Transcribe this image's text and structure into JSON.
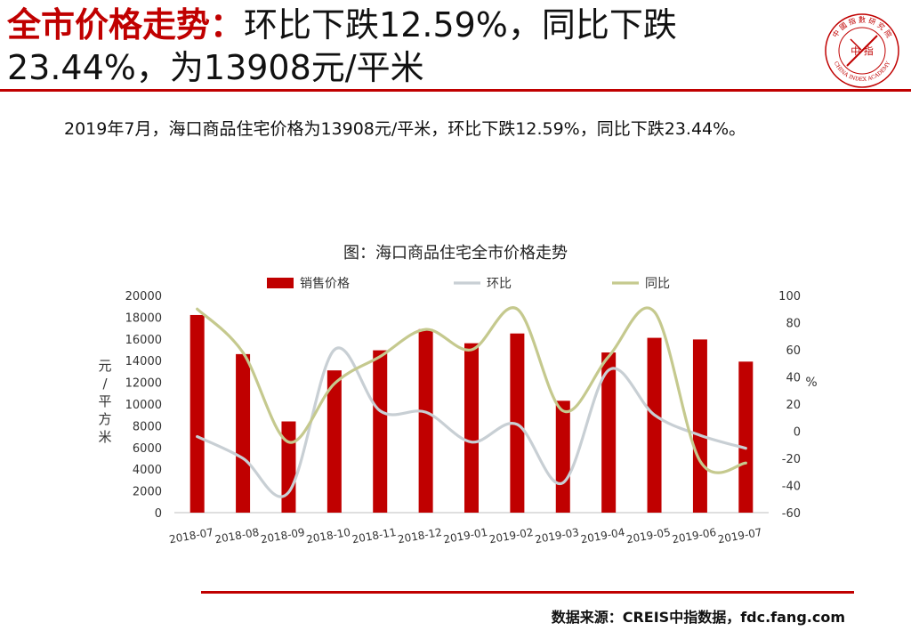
{
  "header": {
    "title_highlight": "全市价格走势：",
    "title_line1_rest": "环比下跌12.59%，同比下跌",
    "title_line2": "23.44%，为13908元/平米"
  },
  "logo": {
    "text_top": "中 國 指 數 研 究 院",
    "text_center": "中 指",
    "text_bottom": "CHINA INDEX ACADEMY",
    "color": "#c00000"
  },
  "summary_text": "2019年7月，海口商品住宅价格为13908元/平米，环比下跌12.59%，同比下跌23.44%。",
  "chart_title": "图：海口商品住宅全市价格走势",
  "source": "数据来源：CREIS中指数据，fdc.fang.com",
  "chart_data": {
    "type": "bar",
    "categories": [
      "2018-07",
      "2018-08",
      "2018-09",
      "2018-10",
      "2018-11",
      "2018-12",
      "2019-01",
      "2019-02",
      "2019-03",
      "2019-04",
      "2019-05",
      "2019-06",
      "2019-07"
    ],
    "series": [
      {
        "name": "销售价格",
        "type": "bar",
        "axis": "left",
        "color": "#c00000",
        "values": [
          18200,
          14600,
          8400,
          13100,
          14950,
          16900,
          15600,
          16500,
          10300,
          14750,
          16100,
          15950,
          13908
        ]
      },
      {
        "name": "环比",
        "type": "line",
        "axis": "right",
        "color": "#c8cfd4",
        "values": [
          -4,
          -20,
          -45,
          60,
          15,
          14,
          -8,
          5,
          -38,
          45,
          12,
          -3,
          -12.59
        ]
      },
      {
        "name": "同比",
        "type": "line",
        "axis": "right",
        "color": "#c5c98e",
        "values": [
          90,
          58,
          -8,
          35,
          55,
          75,
          60,
          90,
          15,
          55,
          88,
          -22,
          -23.44
        ]
      }
    ],
    "ylabel": "元/平方米",
    "y2label": "%",
    "ylim": [
      0,
      20000
    ],
    "y_ticks": [
      "0",
      "2000",
      "4000",
      "6000",
      "8000",
      "10000",
      "12000",
      "14000",
      "16000",
      "18000",
      "20000"
    ],
    "y2lim": [
      -60,
      100
    ],
    "y2_ticks": [
      "-60",
      "-40",
      "-20",
      "0",
      "20",
      "40",
      "60",
      "80",
      "100"
    ],
    "legend_position": "top",
    "grid": false
  }
}
